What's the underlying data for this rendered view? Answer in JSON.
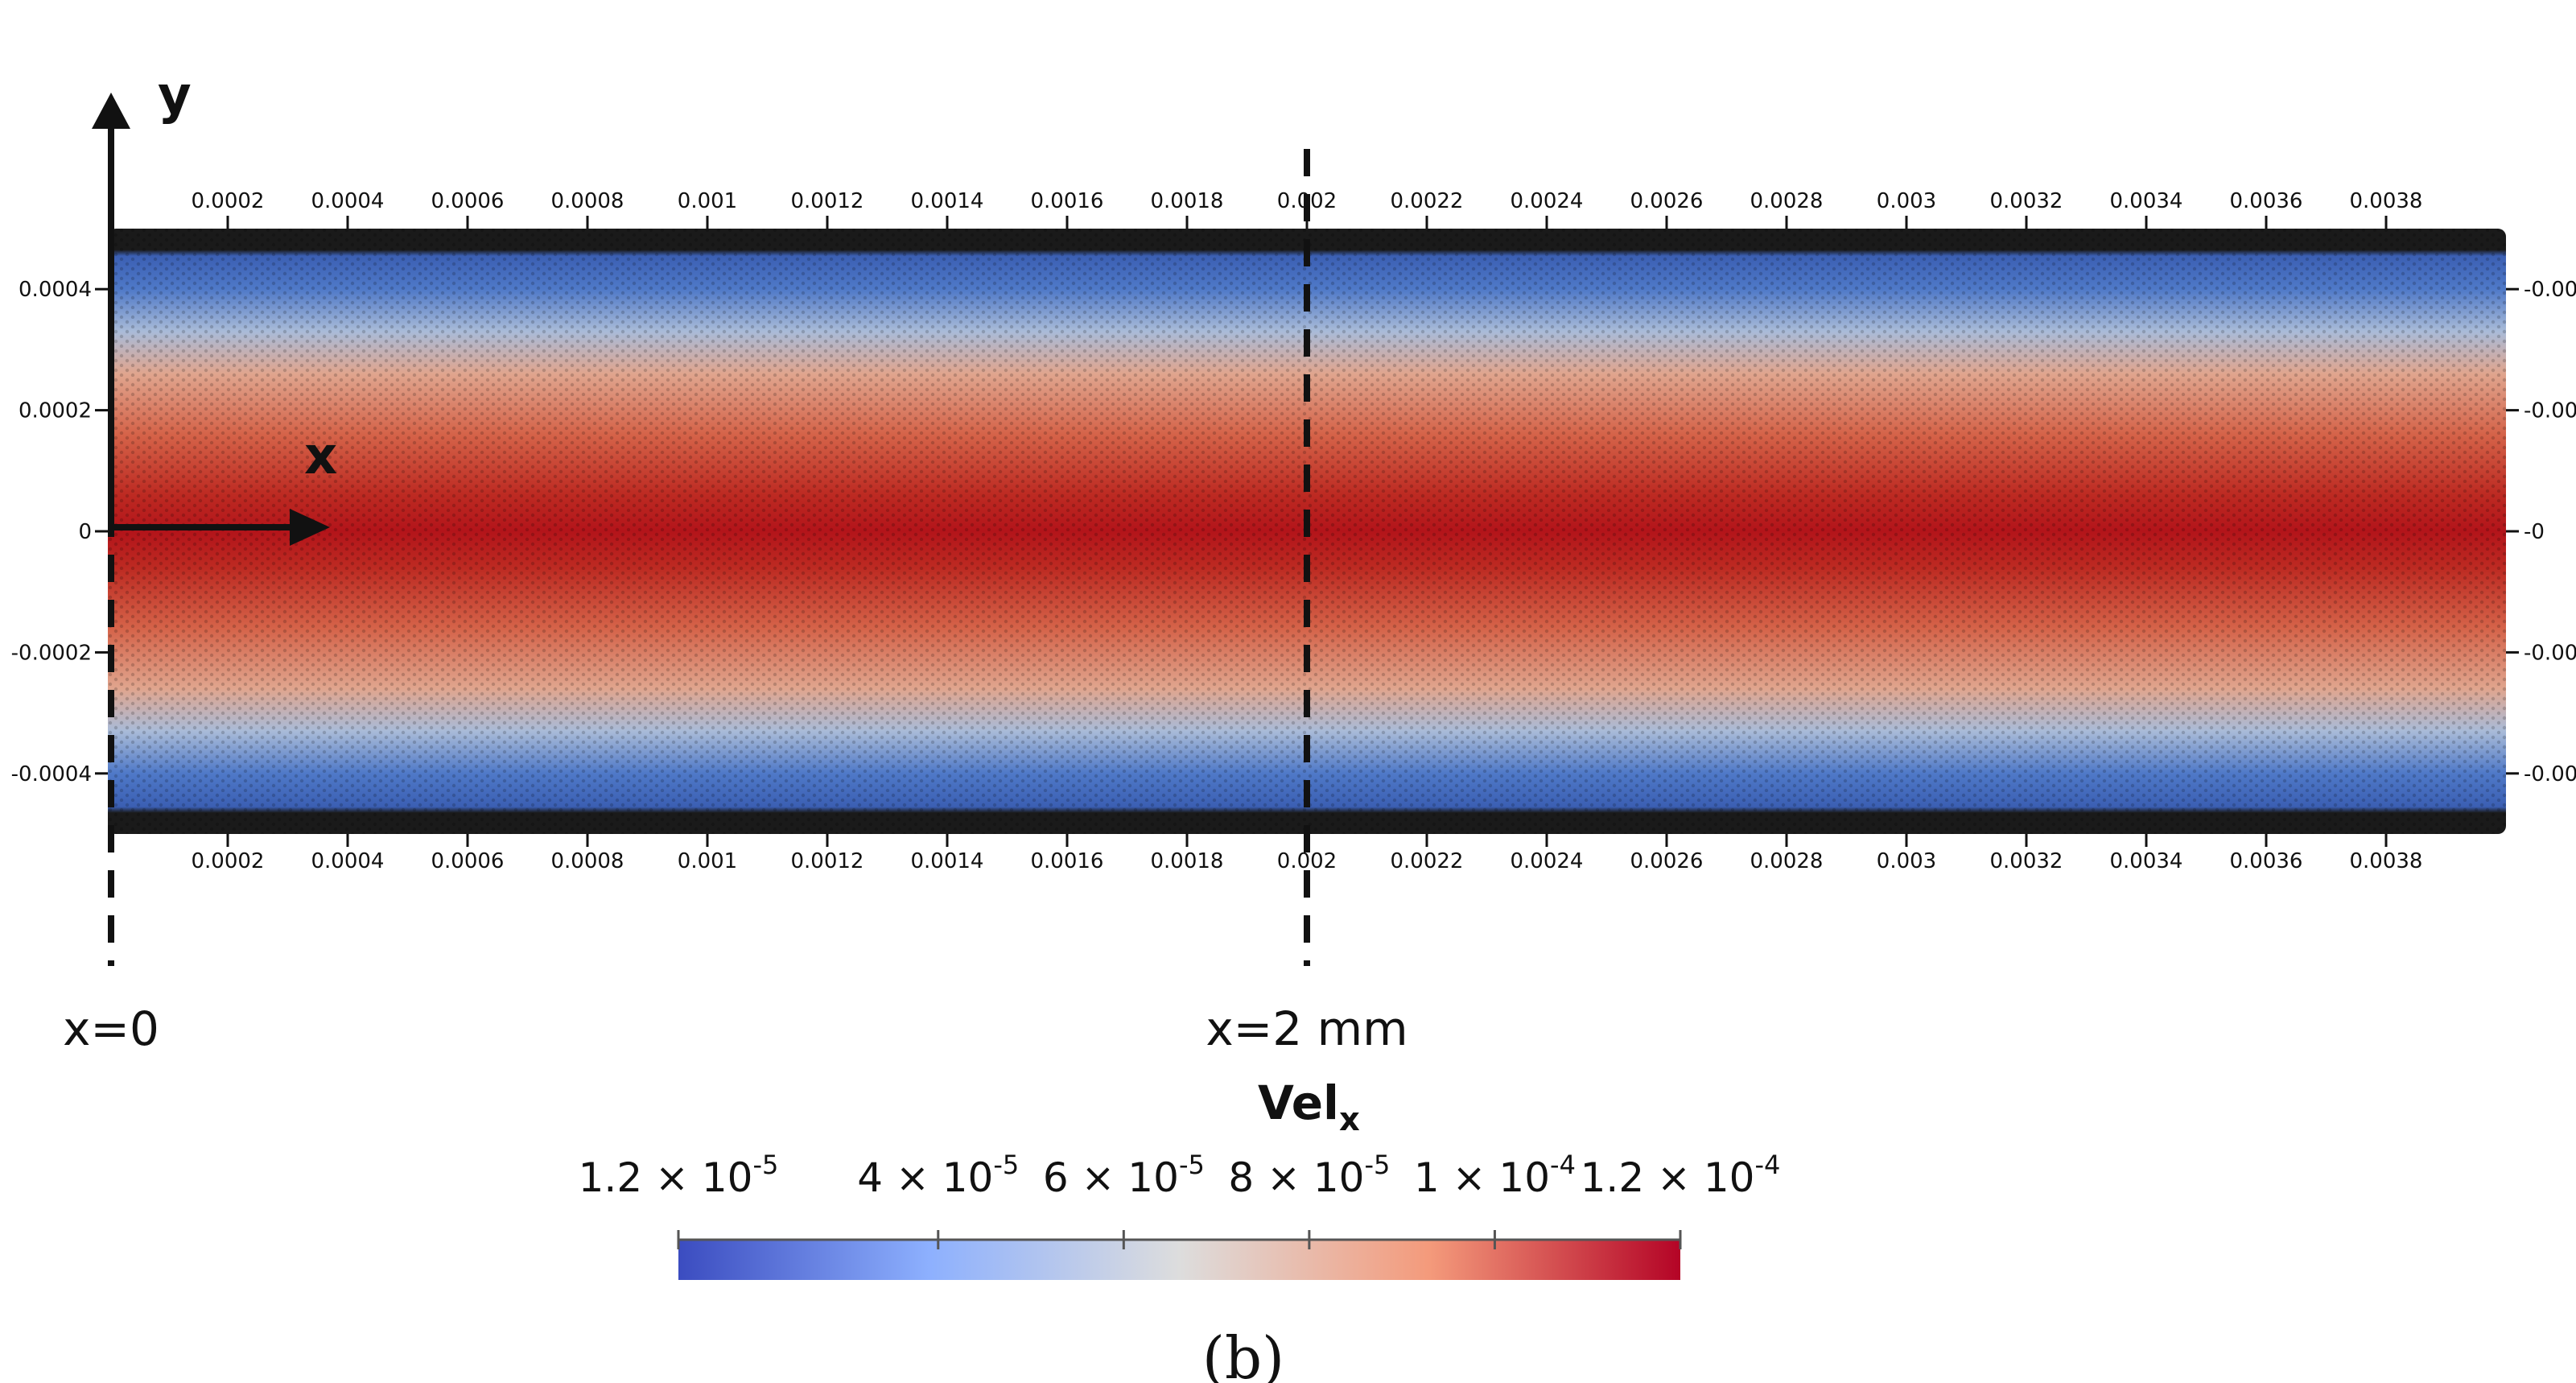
{
  "chart_data": {
    "type": "heatmap",
    "title": "",
    "variable": "Vel",
    "variable_subscript": "x",
    "x_ticks": [
      "0.0002",
      "0.0004",
      "0.0006",
      "0.0008",
      "0.001",
      "0.0012",
      "0.0014",
      "0.0016",
      "0.0018",
      "0.002",
      "0.0022",
      "0.0024",
      "0.0026",
      "0.0028",
      "0.003",
      "0.0032",
      "0.0034",
      "0.0036",
      "0.0038"
    ],
    "x_tick_values": [
      0.0002,
      0.0004,
      0.0006,
      0.0008,
      0.001,
      0.0012,
      0.0014,
      0.0016,
      0.0018,
      0.002,
      0.0022,
      0.0024,
      0.0026,
      0.0028,
      0.003,
      0.0032,
      0.0034,
      0.0036,
      0.0038
    ],
    "x_range": [
      0,
      0.004
    ],
    "y_ticks": [
      "0.0004",
      "0.0002",
      "0",
      "-0.0002",
      "-0.0004"
    ],
    "y_tick_values": [
      0.0004,
      0.0002,
      0,
      -0.0002,
      -0.0004
    ],
    "y_ticks_right": [
      "-0.00",
      "-0.00",
      "-0",
      "-0.00",
      "-0.00"
    ],
    "y_range": [
      -0.0005,
      0.0005
    ],
    "axis_y_label": "y",
    "axis_x_label": "x",
    "markers": [
      {
        "x": 0,
        "label": "x=0"
      },
      {
        "x": 0.002,
        "label": "x=2 mm"
      }
    ],
    "colorbar": {
      "min": 1.2e-05,
      "max": 0.00012,
      "labels": [
        {
          "value": 1.2e-05,
          "mantissa": "1.2 × 10",
          "exp": "-5"
        },
        {
          "value": 4e-05,
          "mantissa": "4 × 10",
          "exp": "-5"
        },
        {
          "value": 6e-05,
          "mantissa": "6 × 10",
          "exp": "-5"
        },
        {
          "value": 8e-05,
          "mantissa": "8 × 10",
          "exp": "-5"
        },
        {
          "value": 0.0001,
          "mantissa": "1 × 10",
          "exp": "-4"
        },
        {
          "value": 0.00012,
          "mantissa": "1.2 × 10",
          "exp": "-4"
        }
      ],
      "colors": [
        "#3b4cc0",
        "#8db0fe",
        "#dddddd",
        "#f49a7b",
        "#b40426"
      ]
    },
    "profile": "parabolic, max at y=0, min at walls (|y|=0.0005)",
    "wall_color": "#111111"
  },
  "panel_label": "(b)"
}
